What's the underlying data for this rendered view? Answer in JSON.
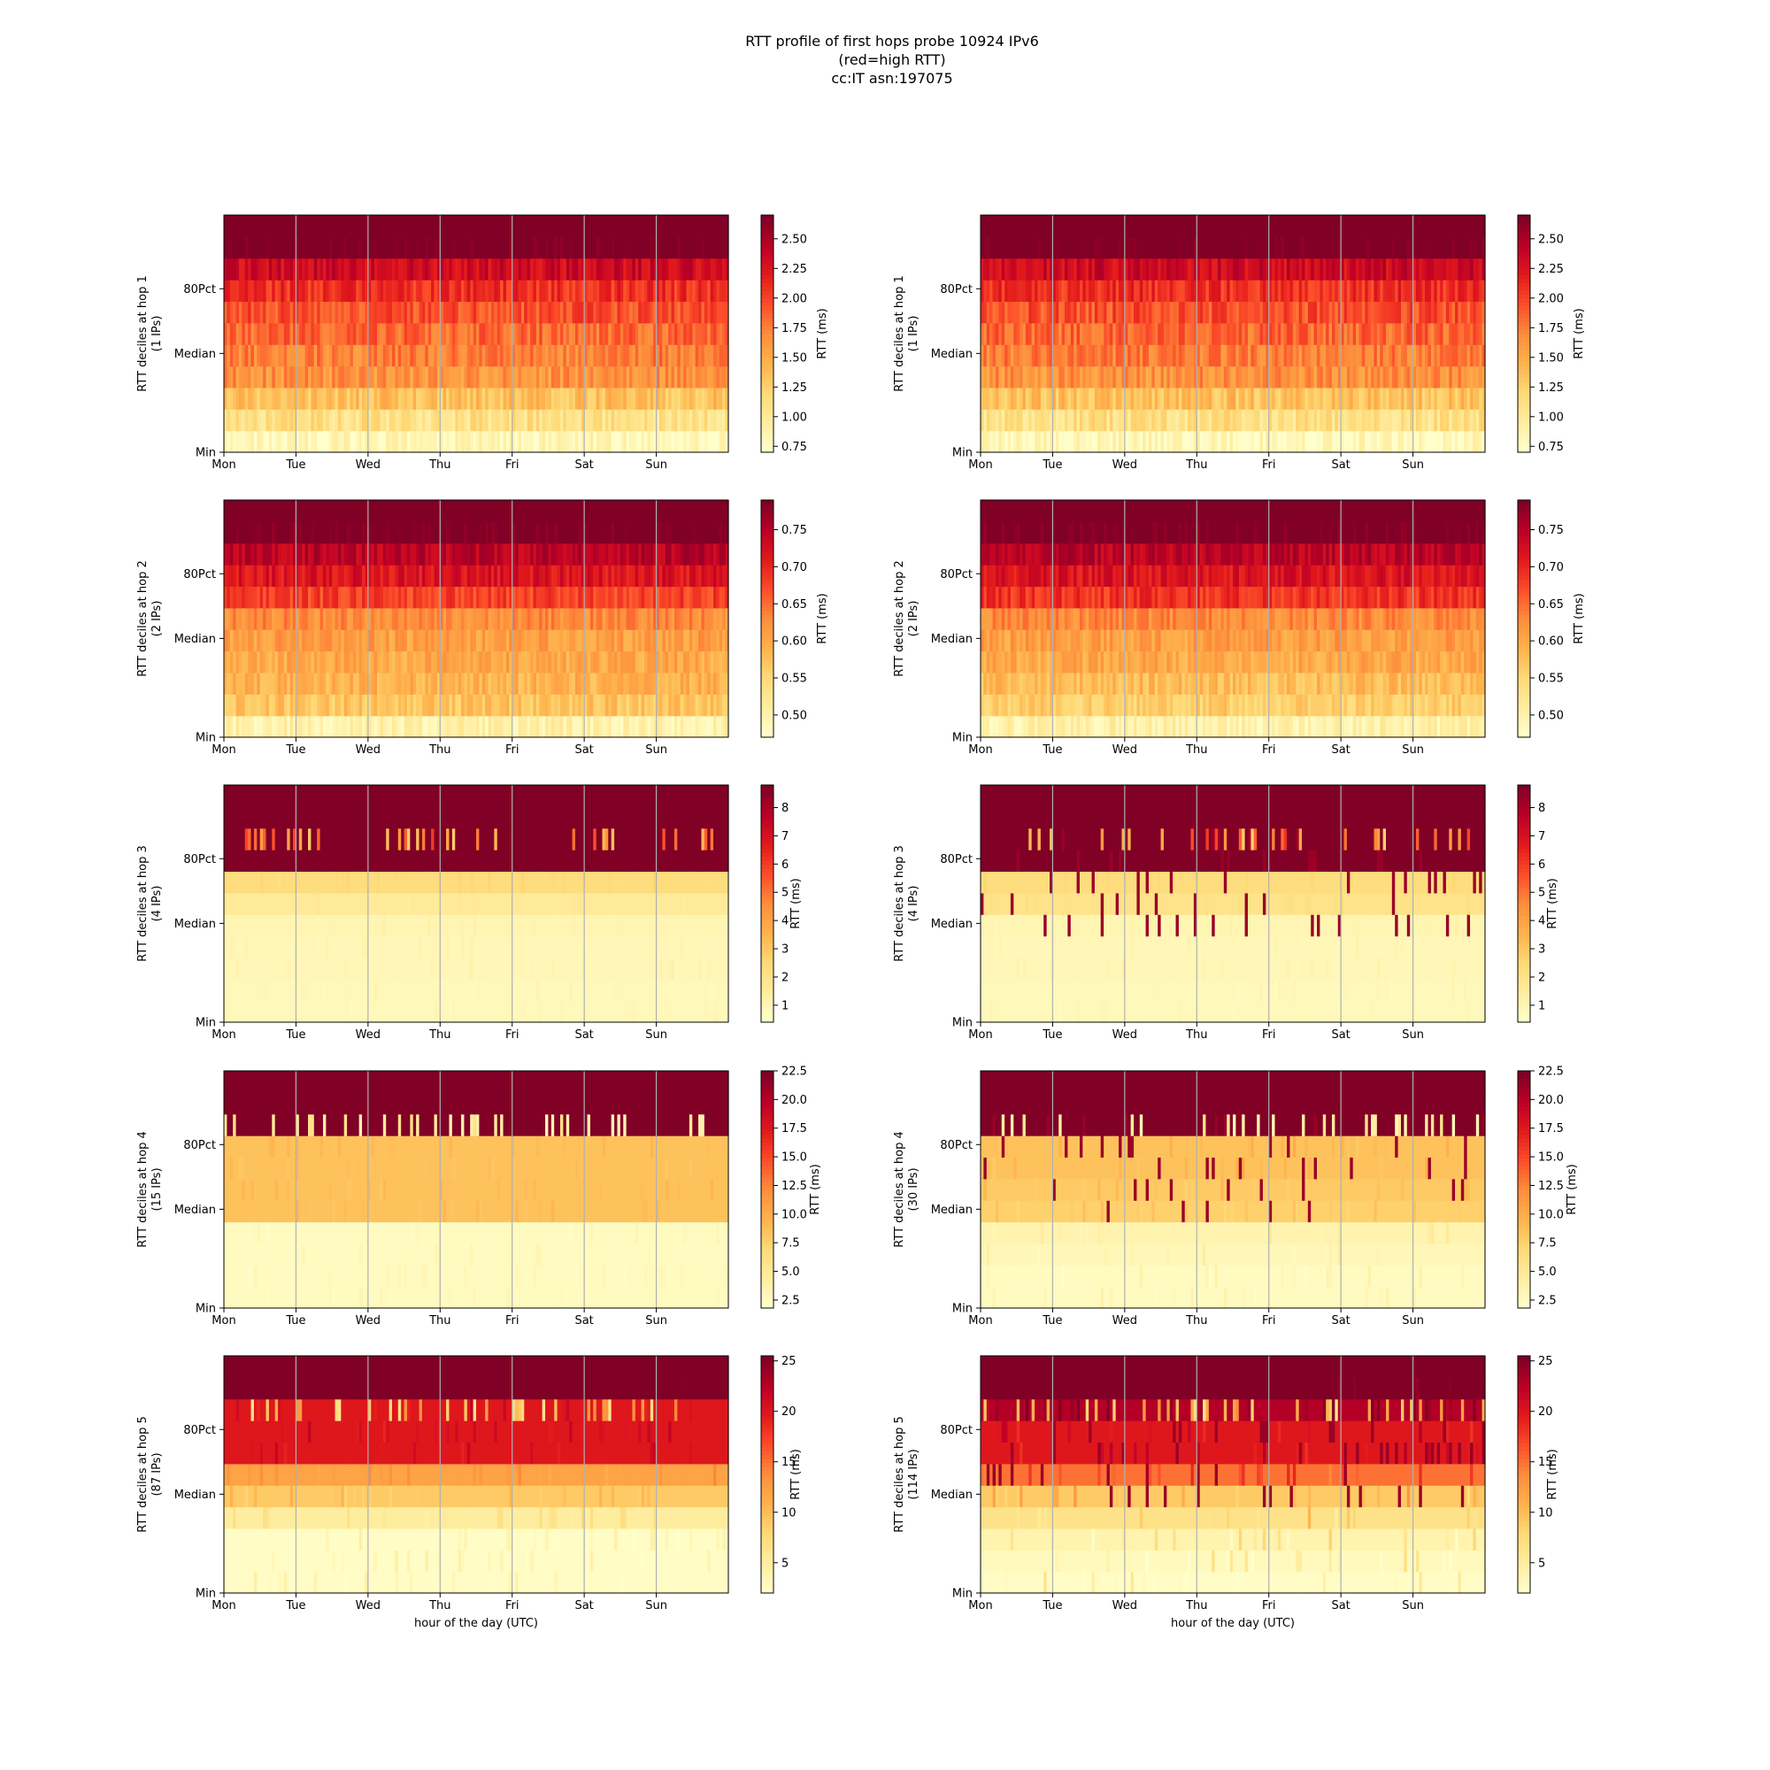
{
  "figure": {
    "title_lines": [
      "RTT profile of first hops probe 10924 IPv6",
      "(red=high RTT)",
      "cc:IT asn:197075"
    ]
  },
  "chart_data": {
    "type": "heatmap",
    "colormap": "YlOrRd",
    "x_axis_label": "hour of the day (UTC)",
    "x_ticks": [
      "Mon",
      "Tue",
      "Wed",
      "Thu",
      "Fri",
      "Sat",
      "Sun"
    ],
    "y_ticks": [
      "Min",
      "Median",
      "80Pct"
    ],
    "colorbar_label": "RTT (ms)",
    "panels": [
      {
        "column": "left",
        "hop": 1,
        "ips": 1,
        "ylabel": "RTT deciles at hop 1",
        "ylabel2": "(1 IPs)",
        "vmin": 0.7,
        "vmax": 2.7,
        "cbar_ticks": [
          "0.75",
          "1.00",
          "1.25",
          "1.50",
          "1.75",
          "2.00",
          "2.25",
          "2.50"
        ],
        "deciles": [
          0.8,
          1.1,
          1.35,
          1.65,
          1.75,
          1.85,
          1.95,
          2.1,
          2.35,
          2.8
        ],
        "noise": 0.18,
        "pattern": "smooth"
      },
      {
        "column": "right",
        "hop": 1,
        "ips": 1,
        "ylabel": "RTT deciles at hop 1",
        "ylabel2": "(1 IPs)",
        "vmin": 0.7,
        "vmax": 2.7,
        "cbar_ticks": [
          "0.75",
          "1.00",
          "1.25",
          "1.50",
          "1.75",
          "2.00",
          "2.25",
          "2.50"
        ],
        "deciles": [
          0.8,
          1.1,
          1.35,
          1.65,
          1.75,
          1.85,
          1.95,
          2.1,
          2.35,
          2.8
        ],
        "noise": 0.18,
        "pattern": "smooth"
      },
      {
        "column": "left",
        "hop": 2,
        "ips": 2,
        "ylabel": "RTT deciles at hop 2",
        "ylabel2": "(2 IPs)",
        "vmin": 0.47,
        "vmax": 0.79,
        "cbar_ticks": [
          "0.50",
          "0.55",
          "0.60",
          "0.65",
          "0.70",
          "0.75"
        ],
        "deciles": [
          0.5,
          0.57,
          0.59,
          0.6,
          0.61,
          0.63,
          0.68,
          0.72,
          0.75,
          0.8
        ],
        "noise": 0.025,
        "pattern": "smooth"
      },
      {
        "column": "right",
        "hop": 2,
        "ips": 2,
        "ylabel": "RTT deciles at hop 2",
        "ylabel2": "(2 IPs)",
        "vmin": 0.47,
        "vmax": 0.79,
        "cbar_ticks": [
          "0.50",
          "0.55",
          "0.60",
          "0.65",
          "0.70",
          "0.75"
        ],
        "deciles": [
          0.5,
          0.56,
          0.58,
          0.6,
          0.61,
          0.63,
          0.69,
          0.72,
          0.75,
          0.8
        ],
        "noise": 0.025,
        "pattern": "smooth"
      },
      {
        "column": "left",
        "hop": 3,
        "ips": 4,
        "ylabel": "RTT deciles at hop 3",
        "ylabel2": "(4 IPs)",
        "vmin": 0.4,
        "vmax": 8.8,
        "cbar_ticks": [
          "1",
          "2",
          "3",
          "4",
          "5",
          "6",
          "7",
          "8"
        ],
        "deciles": [
          0.8,
          0.8,
          0.9,
          0.9,
          1.0,
          1.6,
          2.3,
          9.0,
          9.0,
          9.0
        ],
        "noise": 0.1,
        "pattern": "step"
      },
      {
        "column": "right",
        "hop": 3,
        "ips": 4,
        "ylabel": "RTT deciles at hop 3",
        "ylabel2": "(4 IPs)",
        "vmin": 0.4,
        "vmax": 8.8,
        "cbar_ticks": [
          "1",
          "2",
          "3",
          "4",
          "5",
          "6",
          "7",
          "8"
        ],
        "deciles": [
          0.8,
          0.8,
          0.9,
          0.9,
          1.0,
          2.0,
          2.3,
          9.0,
          9.0,
          9.0
        ],
        "noise": 0.1,
        "pattern": "step_spiky"
      },
      {
        "column": "left",
        "hop": 4,
        "ips": 15,
        "ylabel": "RTT deciles at hop 4",
        "ylabel2": "(15 IPs)",
        "vmin": 1.8,
        "vmax": 22.5,
        "cbar_ticks": [
          "2.5",
          "5.0",
          "7.5",
          "10.0",
          "12.5",
          "15.0",
          "17.5",
          "20.0",
          "22.5"
        ],
        "deciles": [
          2.5,
          2.5,
          2.5,
          2.5,
          8.5,
          8.5,
          8.5,
          8.5,
          23,
          23
        ],
        "noise": 0.3,
        "pattern": "step"
      },
      {
        "column": "right",
        "hop": 4,
        "ips": 30,
        "ylabel": "RTT deciles at hop 4",
        "ylabel2": "(30 IPs)",
        "vmin": 1.8,
        "vmax": 22.5,
        "cbar_ticks": [
          "2.5",
          "5.0",
          "7.5",
          "10.0",
          "12.5",
          "15.0",
          "17.5",
          "20.0",
          "22.5"
        ],
        "deciles": [
          2.5,
          2.5,
          3.0,
          3.5,
          7.5,
          8.0,
          8.5,
          8.5,
          23,
          23
        ],
        "noise": 0.5,
        "pattern": "step_spiky"
      },
      {
        "column": "left",
        "hop": 5,
        "ips": 87,
        "ylabel": "RTT deciles at hop 5",
        "ylabel2": "(87 IPs)",
        "vmin": 2,
        "vmax": 25.5,
        "cbar_ticks": [
          "5",
          "10",
          "15",
          "20",
          "25"
        ],
        "deciles": [
          2.5,
          2.5,
          2.5,
          5,
          9,
          12,
          20,
          20,
          20,
          26
        ],
        "noise": 0.8,
        "pattern": "step"
      },
      {
        "column": "right",
        "hop": 5,
        "ips": 114,
        "ylabel": "RTT deciles at hop 5",
        "ylabel2": "(114 IPs)",
        "vmin": 2,
        "vmax": 25.5,
        "cbar_ticks": [
          "5",
          "10",
          "15",
          "20",
          "25"
        ],
        "deciles": [
          2.5,
          3.0,
          4.0,
          6.5,
          9,
          15,
          20,
          20,
          23,
          26
        ],
        "noise": 1.5,
        "pattern": "step_spiky"
      }
    ]
  }
}
